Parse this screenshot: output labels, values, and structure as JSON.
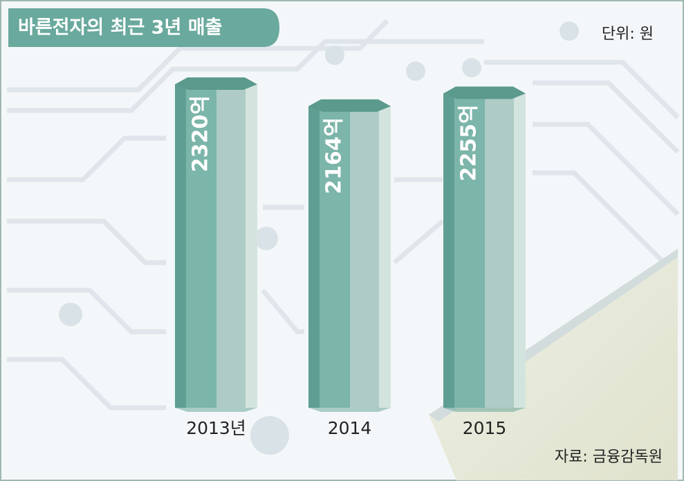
{
  "chart_data": {
    "type": "bar",
    "title": "바른전자의 최근 3년 매출",
    "unit": "단위: 원",
    "source": "자료: 금융감독원",
    "categories": [
      "2013년",
      "2014",
      "2015"
    ],
    "values": [
      2320,
      2164,
      2255
    ],
    "value_labels": [
      "2320억",
      "2164억",
      "2255억"
    ],
    "color": "#7cb5aa"
  }
}
